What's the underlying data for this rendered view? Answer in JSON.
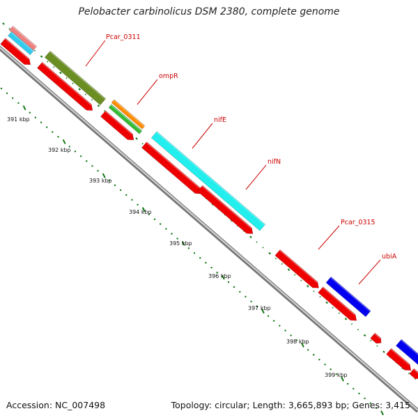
{
  "title": "Pelobacter carbinolicus DSM 2380, complete genome",
  "footer": {
    "accession": "Accession: NC_007498",
    "summary": "Topology: circular; Length: 3,665,893 bp; Genes: 3,415"
  },
  "kbp_labels": [
    "391 kbp",
    "392 kbp",
    "393 kbp",
    "394 kbp",
    "395 kbp",
    "396 kbp",
    "397 kbp",
    "398 kbp",
    "399 kbp"
  ],
  "gene_labels": [
    "Pcar_0311",
    "ompR",
    "nifE",
    "nifN",
    "Pcar_0315",
    "ubiA"
  ],
  "colors": {
    "backbone": "#999999",
    "cds": "#ee0000",
    "ticks": "#117711",
    "label": "#cc0000",
    "gene_light_pink": "#f08080",
    "gene_cyan": "#33ccee",
    "gene_olive": "#6b8e23",
    "gene_orange": "#ff8c00",
    "gene_green": "#33bb33",
    "gene_aqua": "#22eeee",
    "gene_blue": "#0000ee"
  }
}
